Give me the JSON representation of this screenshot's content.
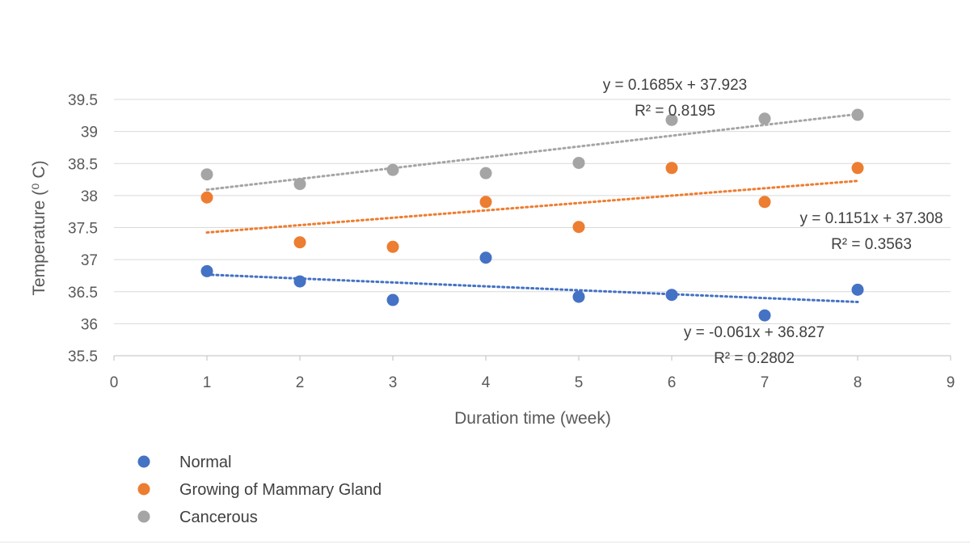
{
  "chart_data": {
    "type": "scatter",
    "xlabel": "Duration time (week)",
    "ylabel": "Temperature (⁰ C)",
    "xlim": [
      0,
      9
    ],
    "ylim": [
      35.5,
      39.5
    ],
    "x_ticks": [
      "0",
      "1",
      "2",
      "3",
      "4",
      "5",
      "6",
      "7",
      "8",
      "9"
    ],
    "y_ticks": [
      "35.5",
      "36",
      "36.5",
      "37",
      "37.5",
      "38",
      "38.5",
      "39",
      "39.5"
    ],
    "grid": "horizontal",
    "legend_position": "bottom-left",
    "series": [
      {
        "name": "Normal",
        "color": "#4472C4",
        "x": [
          1,
          2,
          3,
          4,
          5,
          6,
          7,
          8
        ],
        "y": [
          36.82,
          36.66,
          36.37,
          37.03,
          36.42,
          36.45,
          36.13,
          36.53
        ],
        "trendline": {
          "slope": -0.061,
          "intercept": 36.827,
          "equation": "y = -0.061x + 36.827",
          "r2": "R² = 0.2802"
        }
      },
      {
        "name": "Growing of Mammary Gland",
        "color": "#ED7D31",
        "x": [
          1,
          2,
          3,
          4,
          5,
          6,
          7,
          8
        ],
        "y": [
          37.97,
          37.27,
          37.2,
          37.9,
          37.51,
          38.43,
          37.9,
          38.43
        ],
        "trendline": {
          "slope": 0.1151,
          "intercept": 37.308,
          "equation": "y = 0.1151x + 37.308",
          "r2": "R² = 0.3563"
        }
      },
      {
        "name": "Cancerous",
        "color": "#A5A5A5",
        "x": [
          1,
          2,
          3,
          4,
          5,
          6,
          7,
          8
        ],
        "y": [
          38.33,
          38.18,
          38.4,
          38.35,
          38.51,
          39.18,
          39.2,
          39.26
        ],
        "trendline": {
          "slope": 0.1685,
          "intercept": 37.923,
          "equation": "y = 0.1685x + 37.923",
          "r2": "R² = 0.8195"
        }
      }
    ]
  }
}
